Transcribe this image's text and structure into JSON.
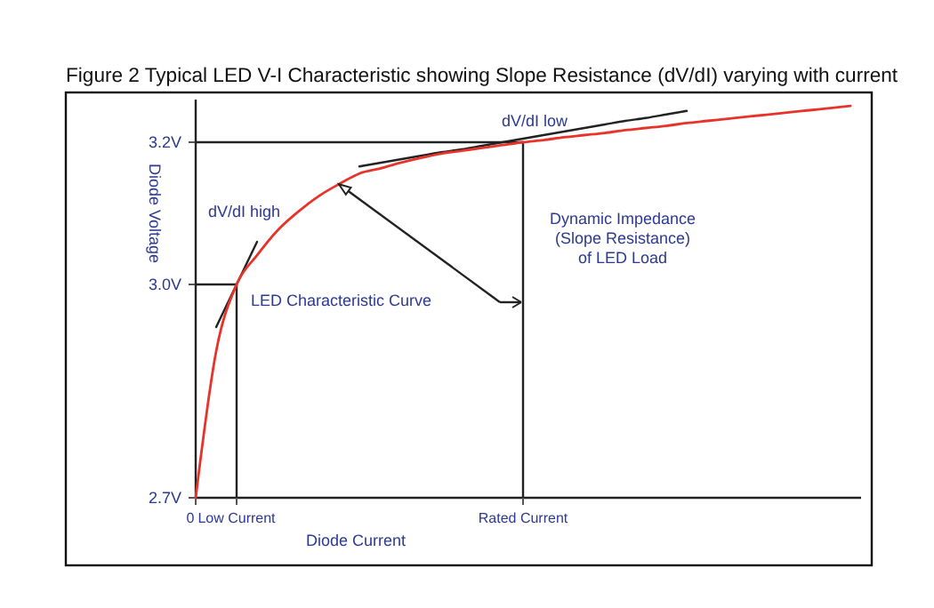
{
  "chart_data": {
    "type": "line",
    "title": "Figure 2 Typical LED V-I Characteristic showing Slope Resistance (dV/dI) varying with current",
    "xlabel": "Diode Current",
    "ylabel": "Diode Voltage",
    "categories": [
      "0",
      null,
      "Low Current",
      null,
      null,
      null,
      null,
      null,
      null,
      null,
      null,
      null,
      null,
      null,
      null,
      null,
      "Rated Current",
      null,
      null,
      null,
      null,
      null,
      null,
      null,
      null,
      null,
      null,
      null,
      null,
      null,
      null,
      null,
      null
    ],
    "ylim": [
      2.7,
      3.26
    ],
    "yticks": [
      {
        "value": 2.7,
        "label": "2.7V"
      },
      {
        "value": 3.0,
        "label": "3.0V"
      },
      {
        "value": 3.2,
        "label": "3.2V"
      }
    ],
    "grid": false,
    "marker": "none",
    "series": [
      {
        "color": "#e8332a",
        "values": [
          2.7,
          2.906,
          3.0,
          3.041,
          3.076,
          3.102,
          3.124,
          3.141,
          3.156,
          3.163,
          3.171,
          3.178,
          3.184,
          3.188,
          3.192,
          3.196,
          3.2,
          3.203,
          3.207,
          3.21,
          3.213,
          3.217,
          3.22,
          3.223,
          3.227,
          3.23,
          3.233,
          3.236,
          3.239,
          3.242,
          3.245,
          3.248,
          3.251
        ]
      },
      {
        "color": "#222222",
        "values": [
          null,
          2.94,
          3.0,
          3.06,
          null,
          null,
          null,
          null,
          null,
          null,
          null,
          null,
          null,
          null,
          null,
          null,
          null,
          null,
          null,
          null,
          null,
          null,
          null,
          null,
          null,
          null,
          null,
          null,
          null,
          null,
          null,
          null,
          null
        ]
      },
      {
        "color": "#222222",
        "values": [
          3.0,
          3.0,
          3.0,
          null,
          null,
          null,
          null,
          null,
          null,
          null,
          null,
          null,
          null,
          null,
          null,
          null,
          null,
          null,
          null,
          null,
          null,
          null,
          null,
          null,
          null,
          null,
          null,
          null,
          null,
          null,
          null,
          null,
          null
        ]
      },
      {
        "color": "#222222",
        "values": [
          3.2,
          3.2,
          3.2,
          3.2,
          3.2,
          3.2,
          3.2,
          3.2,
          3.2,
          3.2,
          3.2,
          3.2,
          3.2,
          3.2,
          3.2,
          3.2,
          3.2,
          null,
          null,
          null,
          null,
          null,
          null,
          null,
          null,
          null,
          null,
          null,
          null,
          null,
          null,
          null,
          null
        ]
      },
      {
        "color": "#222222",
        "values": [
          null,
          null,
          null,
          null,
          null,
          null,
          null,
          null,
          3.166,
          3.171,
          3.176,
          3.181,
          3.186,
          3.19,
          3.195,
          3.2,
          3.205,
          3.21,
          3.215,
          3.22,
          3.225,
          3.23,
          3.234,
          3.239,
          3.244,
          null,
          null,
          null,
          null,
          null,
          null,
          null,
          null
        ]
      }
    ],
    "ref_lines": [
      {
        "axis": "x",
        "value": "Low Current",
        "color": "#222222"
      },
      {
        "axis": "x",
        "value": "Rated Current",
        "color": "#222222"
      }
    ],
    "annotations": [
      "dV/dI high",
      "dV/dI low",
      "LED Characteristic Curve",
      "Dynamic Impedance\n(Slope Resistance)\nof LED Load"
    ]
  }
}
